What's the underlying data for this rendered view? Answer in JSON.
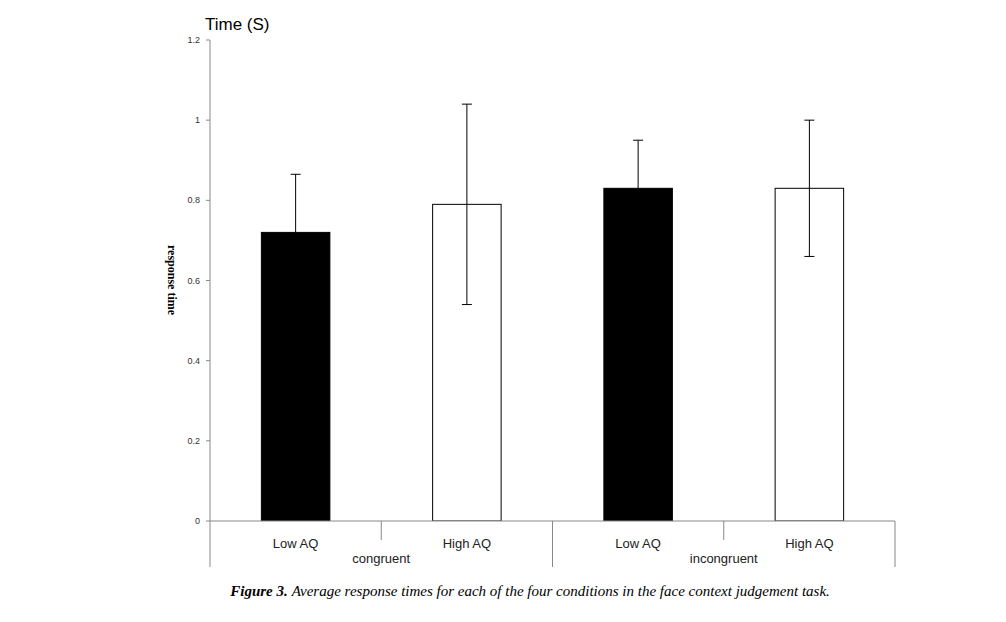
{
  "chart_data": {
    "type": "bar",
    "title": "Time (S)",
    "y_label": "response time",
    "categories": [
      "Low AQ",
      "High AQ",
      "Low AQ",
      "High AQ"
    ],
    "groups": [
      "congruent",
      "incongruent"
    ],
    "values": [
      0.72,
      0.79,
      0.83,
      0.83
    ],
    "errors": [
      0.145,
      0.25,
      0.12,
      0.17
    ],
    "colors": [
      "#000000",
      "#ffffff",
      "#000000",
      "#ffffff"
    ],
    "ylim": [
      0,
      1.2
    ],
    "yticks": [
      0,
      0.2,
      0.4,
      0.6,
      0.8,
      1,
      1.2
    ],
    "grid": false,
    "caption_label": "Figure 3.",
    "caption": "Average response times for each of the four conditions in the face context judgement task."
  }
}
